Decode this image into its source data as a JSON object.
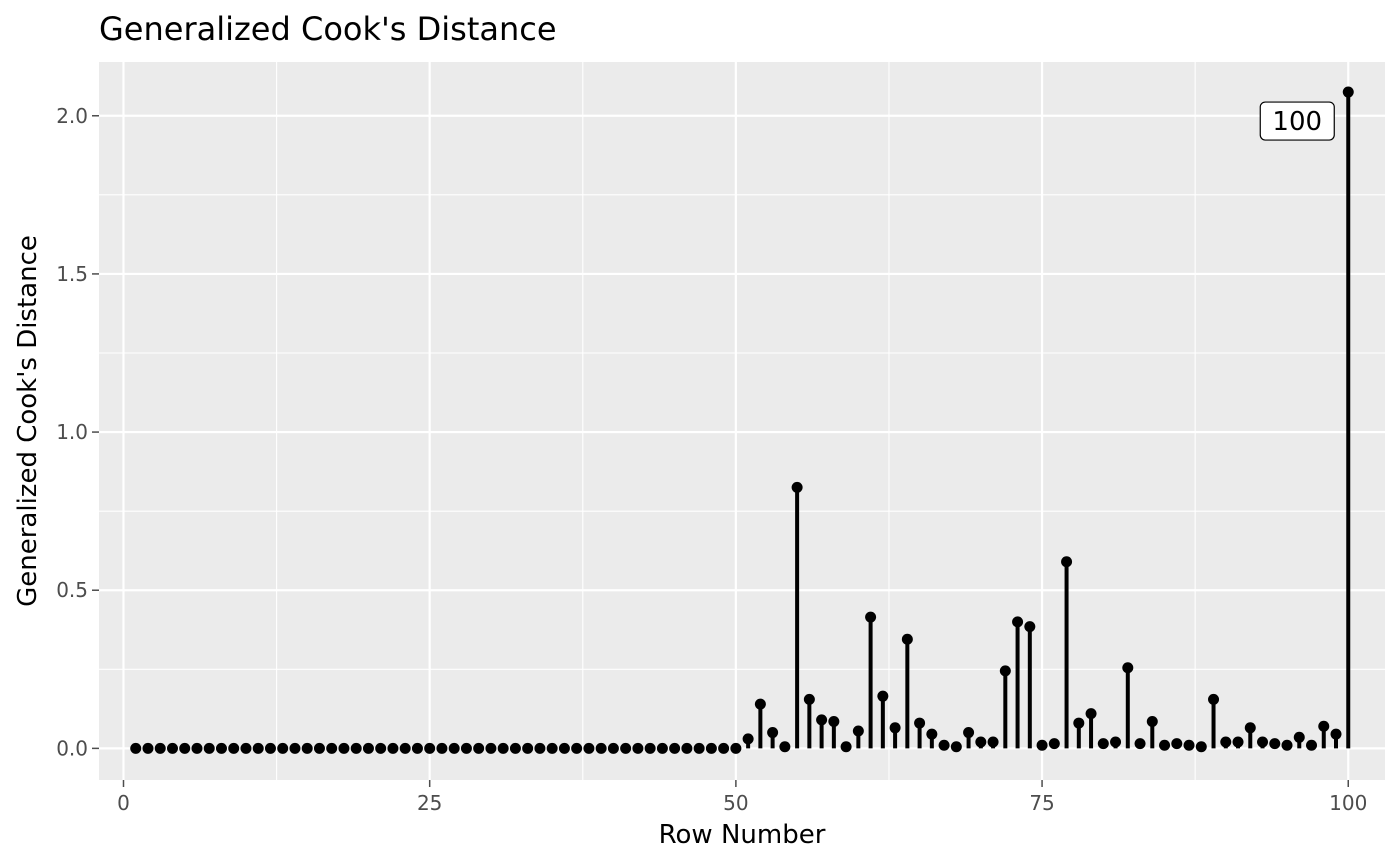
{
  "chart_data": {
    "type": "lollipop",
    "title": "Generalized Cook's Distance",
    "xlabel": "Row Number",
    "ylabel": "Generalized Cook's Distance",
    "xlim": [
      -2,
      103
    ],
    "ylim": [
      -0.1,
      2.17
    ],
    "x_ticks": [
      0,
      25,
      50,
      75,
      100
    ],
    "x_tick_labels": [
      "0",
      "25",
      "50",
      "75",
      "100"
    ],
    "y_ticks": [
      0.0,
      0.5,
      1.0,
      1.5,
      2.0
    ],
    "y_tick_labels": [
      "0.0",
      "0.5",
      "1.0",
      "1.5",
      "2.0"
    ],
    "x_minor": [
      12.5,
      37.5,
      62.5,
      87.5
    ],
    "y_minor": [
      0.25,
      0.75,
      1.25,
      1.75
    ],
    "grid": true,
    "x": [
      1,
      2,
      3,
      4,
      5,
      6,
      7,
      8,
      9,
      10,
      11,
      12,
      13,
      14,
      15,
      16,
      17,
      18,
      19,
      20,
      21,
      22,
      23,
      24,
      25,
      26,
      27,
      28,
      29,
      30,
      31,
      32,
      33,
      34,
      35,
      36,
      37,
      38,
      39,
      40,
      41,
      42,
      43,
      44,
      45,
      46,
      47,
      48,
      49,
      50,
      51,
      52,
      53,
      54,
      55,
      56,
      57,
      58,
      59,
      60,
      61,
      62,
      63,
      64,
      65,
      66,
      67,
      68,
      69,
      70,
      71,
      72,
      73,
      74,
      75,
      76,
      77,
      78,
      79,
      80,
      81,
      82,
      83,
      84,
      85,
      86,
      87,
      88,
      89,
      90,
      91,
      92,
      93,
      94,
      95,
      96,
      97,
      98,
      99,
      100
    ],
    "values": [
      0,
      0,
      0,
      0,
      0,
      0,
      0,
      0,
      0,
      0,
      0,
      0,
      0,
      0,
      0,
      0,
      0,
      0,
      0,
      0,
      0,
      0,
      0,
      0,
      0,
      0,
      0,
      0,
      0,
      0,
      0,
      0,
      0,
      0,
      0,
      0,
      0,
      0,
      0,
      0,
      0,
      0,
      0,
      0,
      0,
      0,
      0,
      0,
      0,
      0,
      0.03,
      0.14,
      0.05,
      0.005,
      0.825,
      0.155,
      0.09,
      0.085,
      0.005,
      0.055,
      0.415,
      0.165,
      0.065,
      0.345,
      0.08,
      0.045,
      0.01,
      0.005,
      0.05,
      0.02,
      0.02,
      0.245,
      0.4,
      0.385,
      0.01,
      0.015,
      0.59,
      0.08,
      0.11,
      0.015,
      0.02,
      0.255,
      0.015,
      0.085,
      0.01,
      0.015,
      0.01,
      0.005,
      0.155,
      0.02,
      0.02,
      0.065,
      0.02,
      0.015,
      0.01,
      0.035,
      0.01,
      0.07,
      0.045,
      2.075
    ],
    "annotations": [
      {
        "x": 100,
        "y": 2.075,
        "label": "100"
      }
    ],
    "colors": {
      "panel": "#ebebeb",
      "grid": "#ffffff",
      "marks": "#000000",
      "ticks": "#4d4d4d"
    }
  }
}
